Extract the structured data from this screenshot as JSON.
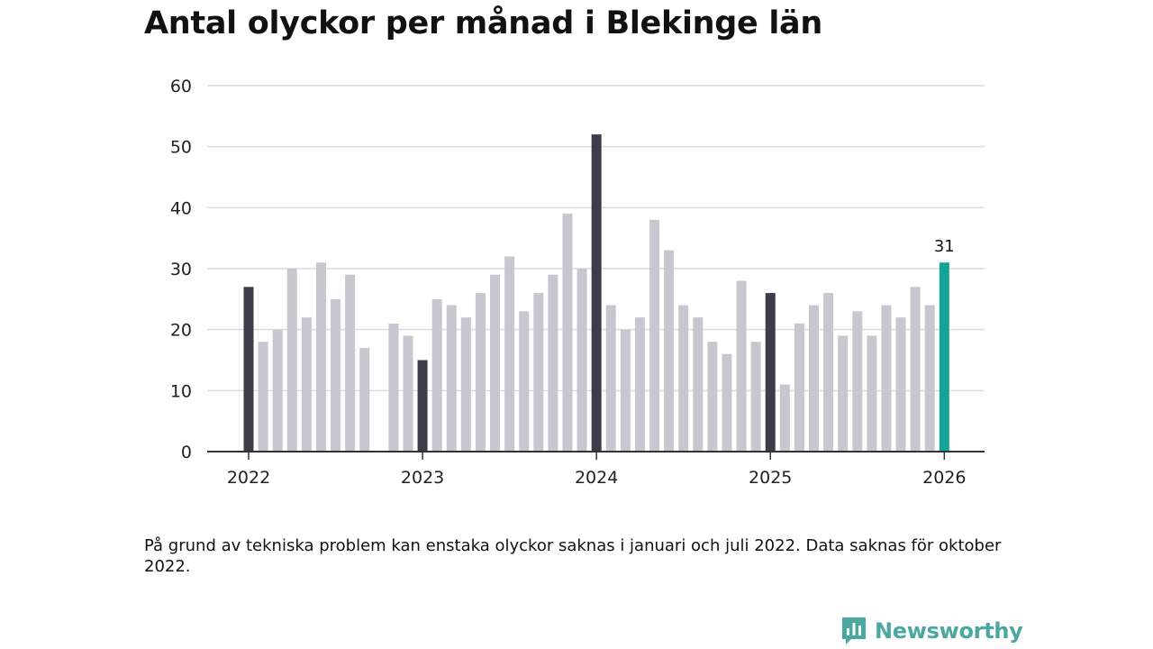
{
  "title": "Antal olyckor per månad i Blekinge län",
  "note": "På grund av tekniska problem kan enstaka olyckor saknas i januari och juli 2022. Data saknas för oktober 2022.",
  "brand": {
    "name": "Newsworthy",
    "icon": "newsworthy-logo-icon",
    "color": "#4aa8a0"
  },
  "colors": {
    "highlight": "#3d3d4a",
    "regular": "#c8c7cf",
    "latest": "#13a397",
    "grid": "#dcdcdc",
    "axis": "#333333"
  },
  "chart_data": {
    "type": "bar",
    "title": "Antal olyckor per månad i Blekinge län",
    "xlabel": "",
    "ylabel": "",
    "ylim": [
      0,
      60
    ],
    "y_ticks": [
      0,
      10,
      20,
      30,
      40,
      50,
      60
    ],
    "x_ticks": [
      "2022",
      "2023",
      "2024",
      "2025",
      "2026"
    ],
    "grid": true,
    "categories": [
      "2022-01",
      "2022-02",
      "2022-03",
      "2022-04",
      "2022-05",
      "2022-06",
      "2022-07",
      "2022-08",
      "2022-09",
      "2022-10",
      "2022-11",
      "2022-12",
      "2023-01",
      "2023-02",
      "2023-03",
      "2023-04",
      "2023-05",
      "2023-06",
      "2023-07",
      "2023-08",
      "2023-09",
      "2023-10",
      "2023-11",
      "2023-12",
      "2024-01",
      "2024-02",
      "2024-03",
      "2024-04",
      "2024-05",
      "2024-06",
      "2024-07",
      "2024-08",
      "2024-09",
      "2024-10",
      "2024-11",
      "2024-12",
      "2025-01",
      "2025-02",
      "2025-03",
      "2025-04",
      "2025-05",
      "2025-06",
      "2025-07",
      "2025-08",
      "2025-09",
      "2025-10",
      "2025-11",
      "2025-12",
      "2026-01"
    ],
    "values": [
      27,
      18,
      20,
      30,
      22,
      31,
      25,
      29,
      17,
      null,
      21,
      19,
      15,
      25,
      24,
      22,
      26,
      29,
      32,
      23,
      26,
      29,
      39,
      30,
      52,
      24,
      20,
      22,
      38,
      33,
      24,
      22,
      18,
      16,
      28,
      18,
      26,
      11,
      21,
      24,
      26,
      19,
      23,
      19,
      24,
      22,
      27,
      24,
      31
    ],
    "data_labels": [
      {
        "category": "2026-01",
        "text": "31"
      }
    ]
  }
}
